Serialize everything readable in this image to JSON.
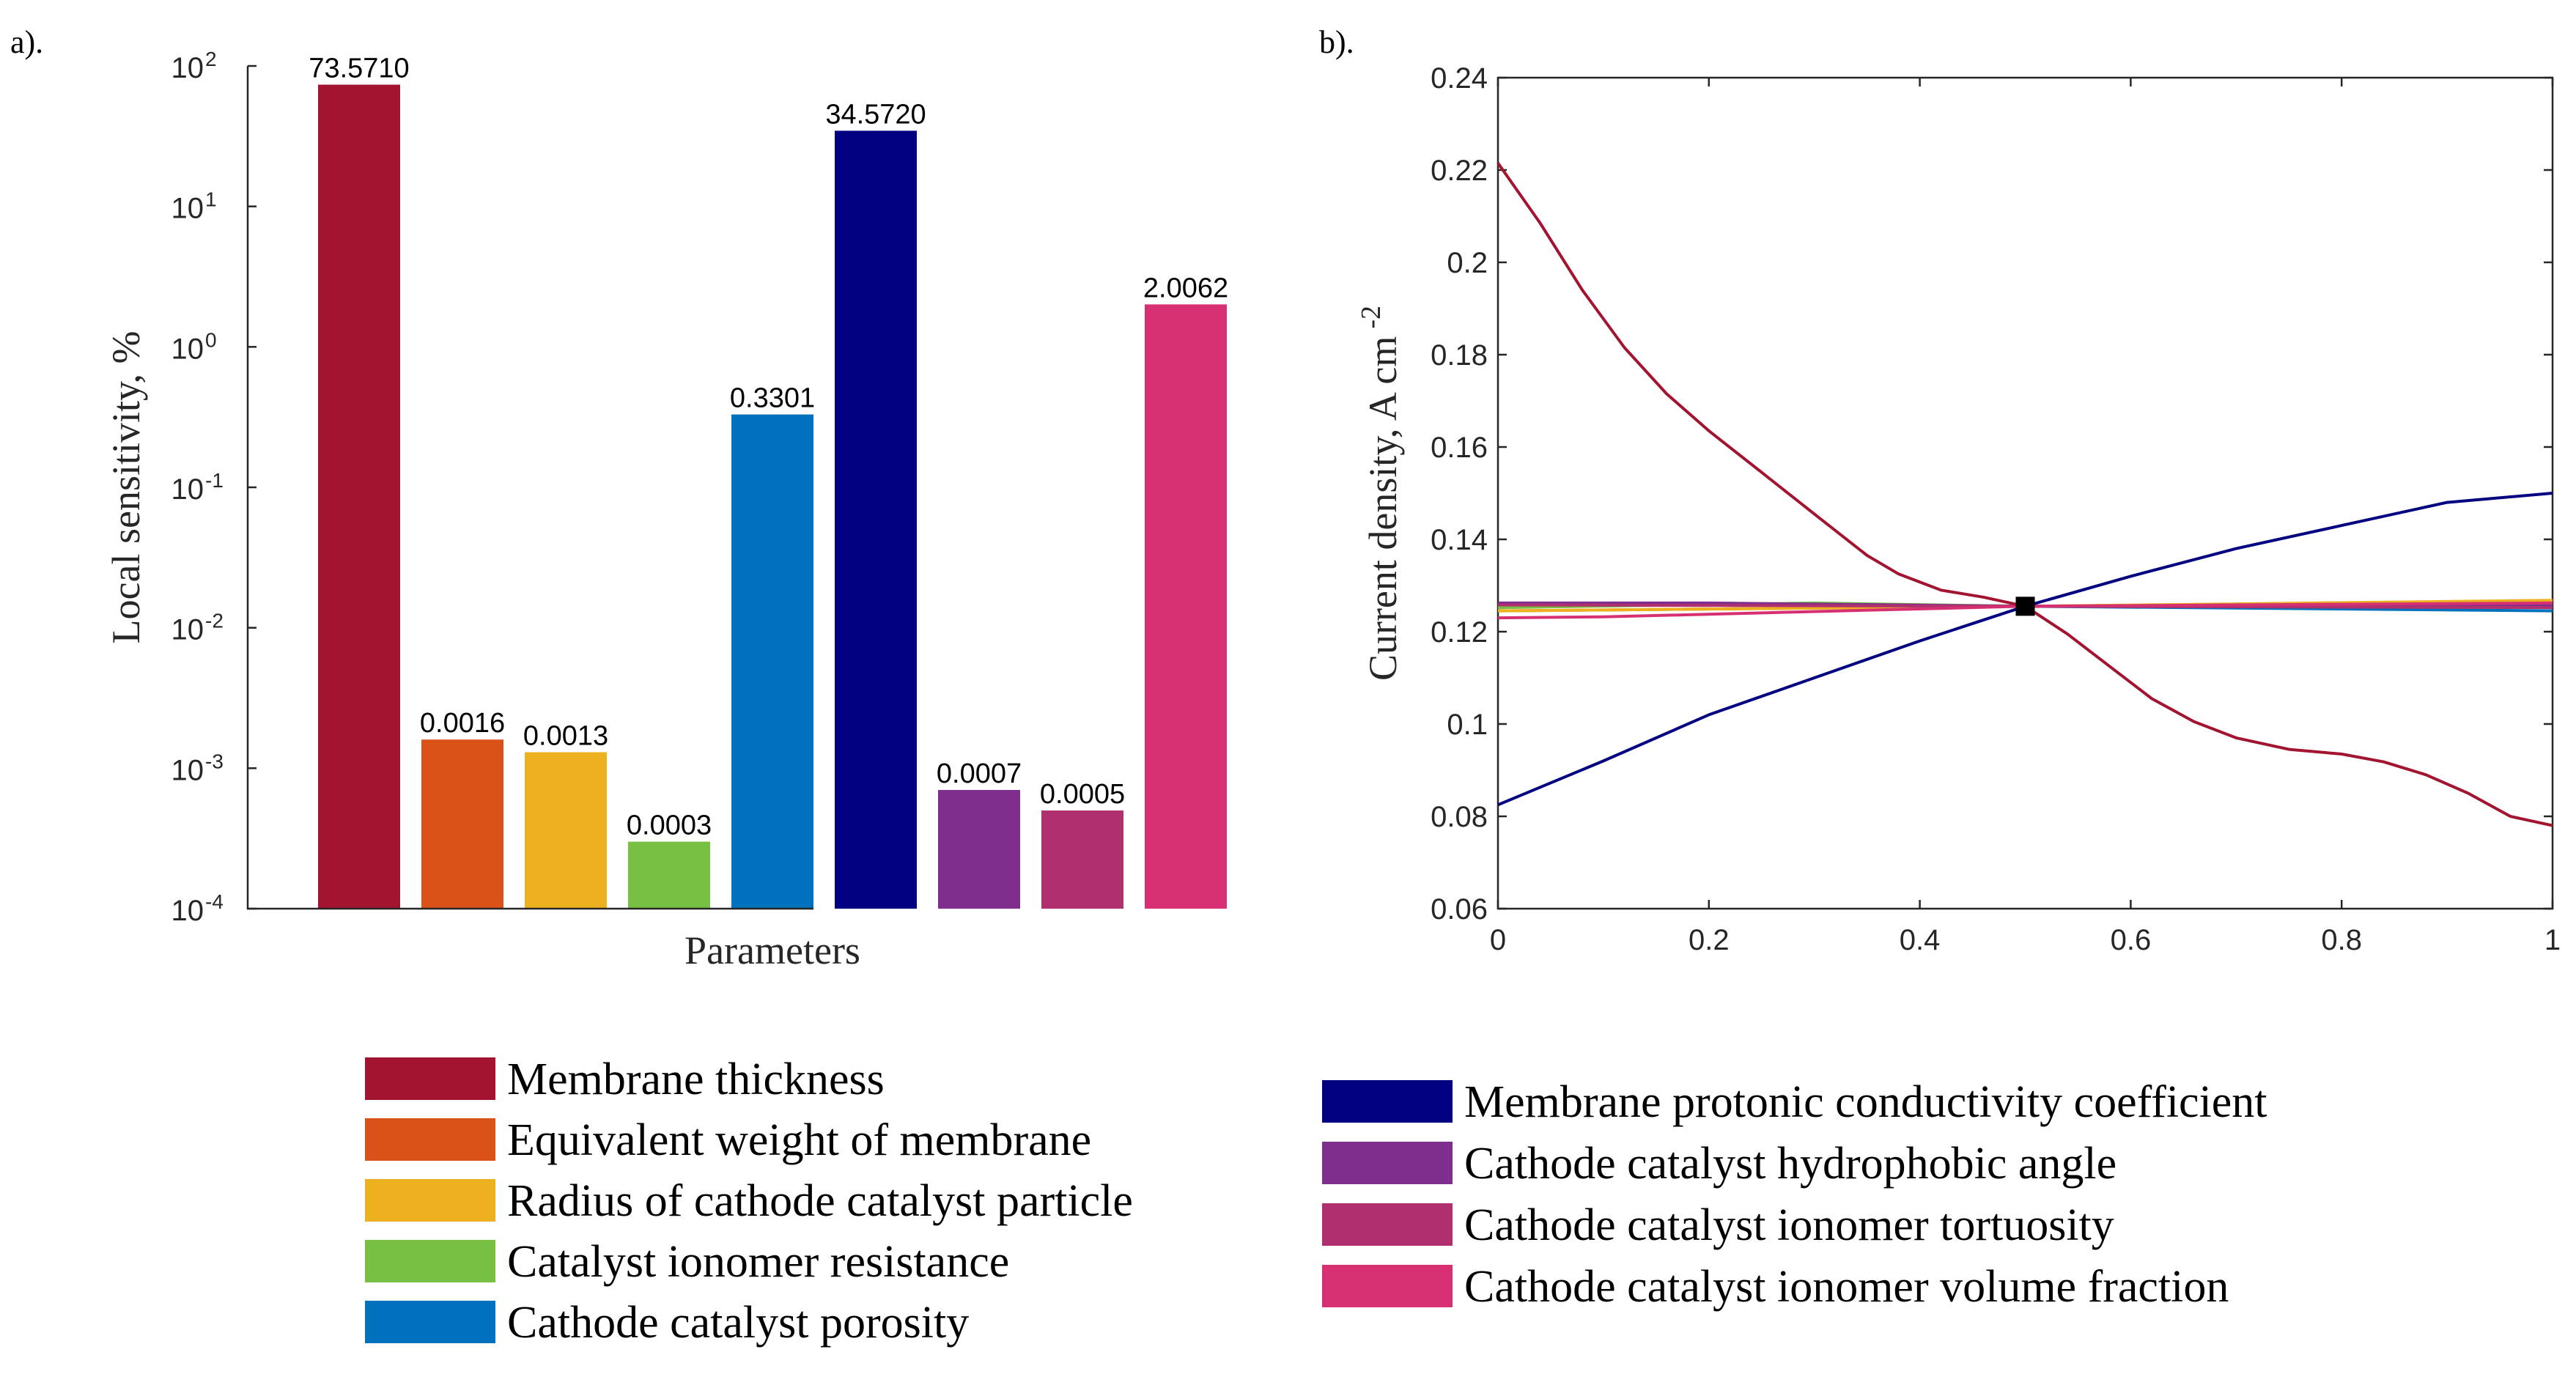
{
  "panels": {
    "a": "a).",
    "b": "b)."
  },
  "colors": {
    "membrane_thickness": "#a2142f",
    "equivalent_weight": "#d95319",
    "radius_particle": "#edb120",
    "ionomer_resistance": "#77c043",
    "porosity": "#0072bd",
    "protonic_conductivity": "#000080",
    "hydrophobic_angle": "#7e2f8e",
    "ionomer_tortuosity": "#b0306f",
    "ionomer_volume_fraction": "#d63073"
  },
  "chart_data": [
    {
      "type": "bar",
      "panel": "a",
      "yscale": "log",
      "ylim": [
        0.0001,
        100
      ],
      "xlabel": "Parameters",
      "ylabel": "Local sensitivity, %",
      "y_ticks": [
        {
          "base": "10",
          "exp": "2",
          "value": 100
        },
        {
          "base": "10",
          "exp": "1",
          "value": 10
        },
        {
          "base": "10",
          "exp": "0",
          "value": 1
        },
        {
          "base": "10",
          "exp": "-1",
          "value": 0.1
        },
        {
          "base": "10",
          "exp": "-2",
          "value": 0.01
        },
        {
          "base": "10",
          "exp": "-3",
          "value": 0.001
        },
        {
          "base": "10",
          "exp": "-4",
          "value": 0.0001
        }
      ],
      "bars": [
        {
          "name": "Membrane thickness",
          "value": 73.571,
          "label": "73.5710",
          "color": "#a2142f"
        },
        {
          "name": "Equivalent weight of membrane",
          "value": 0.0016,
          "label": "0.0016",
          "color": "#d95319"
        },
        {
          "name": "Radius of cathode catalyst particle",
          "value": 0.0013,
          "label": "0.0013",
          "color": "#edb120"
        },
        {
          "name": "Catalyst ionomer resistance",
          "value": 0.0003,
          "label": "0.0003",
          "color": "#77c043"
        },
        {
          "name": "Cathode catalyst porosity",
          "value": 0.3301,
          "label": "0.3301",
          "color": "#0072bd"
        },
        {
          "name": "Membrane protonic conductivity coefficient",
          "value": 34.572,
          "label": "34.5720",
          "color": "#000080"
        },
        {
          "name": "Cathode catalyst hydrophobic angle",
          "value": 0.0007,
          "label": "0.0007",
          "color": "#7e2f8e"
        },
        {
          "name": "Cathode catalyst ionomer tortuosity",
          "value": 0.0005,
          "label": "0.0005",
          "color": "#b0306f"
        },
        {
          "name": "Cathode catalyst ionomer volume fraction",
          "value": 2.0062,
          "label": "2.0062",
          "color": "#d63073"
        }
      ]
    },
    {
      "type": "line",
      "panel": "b",
      "xlim": [
        0,
        1
      ],
      "ylim": [
        0.06,
        0.24
      ],
      "xlabel": "",
      "ylabel": "Current density, A cm",
      "ylabel_sup": "-2",
      "x_ticks": [
        "0",
        "0.2",
        "0.4",
        "0.6",
        "0.8",
        "1"
      ],
      "y_ticks": [
        "0.06",
        "0.08",
        "0.1",
        "0.12",
        "0.14",
        "0.16",
        "0.18",
        "0.2",
        "0.22",
        "0.24"
      ],
      "marker": {
        "x": 0.5,
        "y": 0.1255,
        "shape": "square"
      },
      "series": [
        {
          "name": "Equivalent weight of membrane",
          "color": "#d95319",
          "x": [
            0,
            0.5,
            1
          ],
          "y": [
            0.1245,
            0.1255,
            0.1265
          ]
        },
        {
          "name": "Radius of cathode catalyst particle",
          "color": "#edb120",
          "x": [
            0,
            0.5,
            1
          ],
          "y": [
            0.1245,
            0.1255,
            0.1268
          ]
        },
        {
          "name": "Catalyst ionomer resistance",
          "color": "#77c043",
          "x": [
            0,
            0.3,
            0.5,
            1
          ],
          "y": [
            0.1252,
            0.1262,
            0.1255,
            0.1262
          ]
        },
        {
          "name": "Cathode catalyst porosity",
          "color": "#0072bd",
          "x": [
            0,
            0.5,
            1
          ],
          "y": [
            0.126,
            0.1255,
            0.1245
          ]
        },
        {
          "name": "Cathode catalyst hydrophobic angle",
          "color": "#7e2f8e",
          "x": [
            0,
            0.2,
            0.5,
            1
          ],
          "y": [
            0.1262,
            0.1262,
            0.1255,
            0.1258
          ]
        },
        {
          "name": "Cathode catalyst ionomer tortuosity",
          "color": "#b0306f",
          "x": [
            0,
            0.5,
            1
          ],
          "y": [
            0.1258,
            0.1255,
            0.1252
          ]
        },
        {
          "name": "Cathode catalyst ionomer volume fraction",
          "color": "#d63073",
          "x": [
            0,
            0.1,
            0.5,
            1
          ],
          "y": [
            0.123,
            0.1232,
            0.1255,
            0.1262
          ]
        },
        {
          "name": "Membrane protonic conductivity coefficient",
          "color": "#000080",
          "x": [
            0,
            0.1,
            0.2,
            0.3,
            0.4,
            0.5,
            0.6,
            0.7,
            0.8,
            0.9,
            1.0
          ],
          "y": [
            0.0825,
            0.092,
            0.102,
            0.11,
            0.118,
            0.1255,
            0.132,
            0.138,
            0.143,
            0.148,
            0.15
          ]
        },
        {
          "name": "Membrane thickness",
          "color": "#a2142f",
          "x": [
            0,
            0.04,
            0.08,
            0.12,
            0.16,
            0.2,
            0.25,
            0.3,
            0.35,
            0.38,
            0.42,
            0.46,
            0.5,
            0.54,
            0.58,
            0.62,
            0.66,
            0.7,
            0.75,
            0.8,
            0.84,
            0.88,
            0.92,
            0.96,
            1.0
          ],
          "y": [
            0.2215,
            0.2085,
            0.194,
            0.1815,
            0.1715,
            0.1635,
            0.1545,
            0.1455,
            0.1365,
            0.1325,
            0.129,
            0.1275,
            0.1255,
            0.1195,
            0.1125,
            0.1055,
            0.1005,
            0.097,
            0.0945,
            0.0935,
            0.0918,
            0.089,
            0.085,
            0.08,
            0.078
          ]
        }
      ]
    }
  ],
  "legend": {
    "left": [
      {
        "label": "Membrane thickness",
        "color": "#a2142f"
      },
      {
        "label": "Equivalent weight of membrane",
        "color": "#d95319"
      },
      {
        "label": "Radius of cathode catalyst particle",
        "color": "#edb120"
      },
      {
        "label": "Catalyst ionomer resistance",
        "color": "#77c043"
      },
      {
        "label": "Cathode catalyst porosity",
        "color": "#0072bd"
      }
    ],
    "right": [
      {
        "label": "Membrane protonic conductivity coefficient",
        "color": "#000080"
      },
      {
        "label": "Cathode catalyst hydrophobic angle",
        "color": "#7e2f8e"
      },
      {
        "label": "Cathode catalyst ionomer tortuosity",
        "color": "#b0306f"
      },
      {
        "label": "Cathode catalyst ionomer volume fraction",
        "color": "#d63073"
      }
    ]
  }
}
